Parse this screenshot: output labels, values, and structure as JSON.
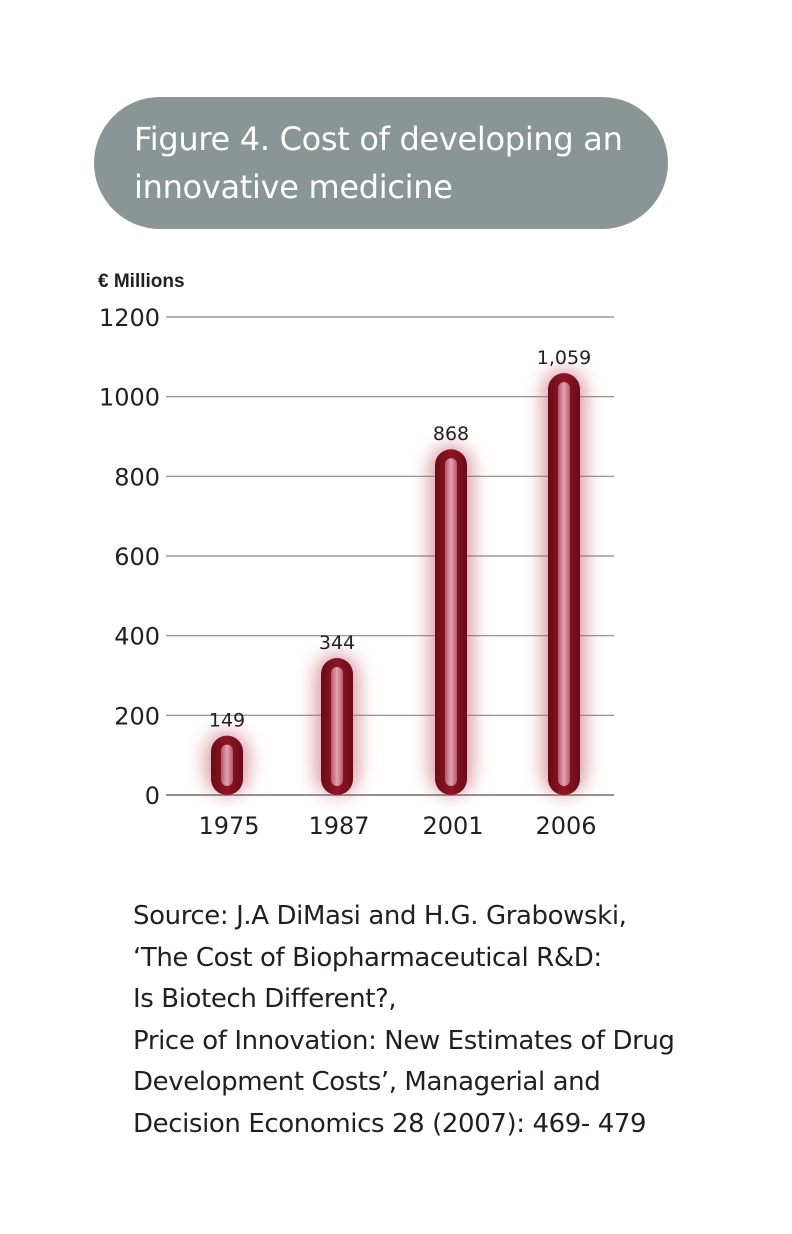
{
  "title": "Figure 4. Cost of developing an innovative medicine",
  "title_lines": [
    "Figure 4. Cost of developing an",
    "innovative medicine"
  ],
  "unit_label": "€ Millions",
  "colors": {
    "title_box": "#8a9595",
    "bar_dark": "#7a0c1c",
    "bar_light": "#d98c97",
    "gridline": "#888888"
  },
  "chart_data": {
    "type": "bar",
    "title": "Figure 4. Cost of developing an innovative medicine",
    "ylabel": "€ Millions",
    "xlabel": "",
    "categories": [
      "1975",
      "1987",
      "2001",
      "2006"
    ],
    "values": [
      149,
      344,
      868,
      1059
    ],
    "value_labels": [
      "149",
      "344",
      "868",
      "1,059"
    ],
    "ylim": [
      0,
      1200
    ],
    "yticks": [
      0,
      200,
      400,
      600,
      800,
      1000,
      1200
    ],
    "grid": true,
    "legend": "none"
  },
  "source": {
    "lines": [
      "Source: J.A DiMasi and H.G. Grabowski,",
      "‘The Cost of Biopharmaceutical R&D:",
      "Is Biotech Different?,",
      "Price of Innovation: New Estimates of Drug",
      "Development Costs’, Managerial and",
      "Decision Economics 28 (2007): 469- 479"
    ]
  }
}
